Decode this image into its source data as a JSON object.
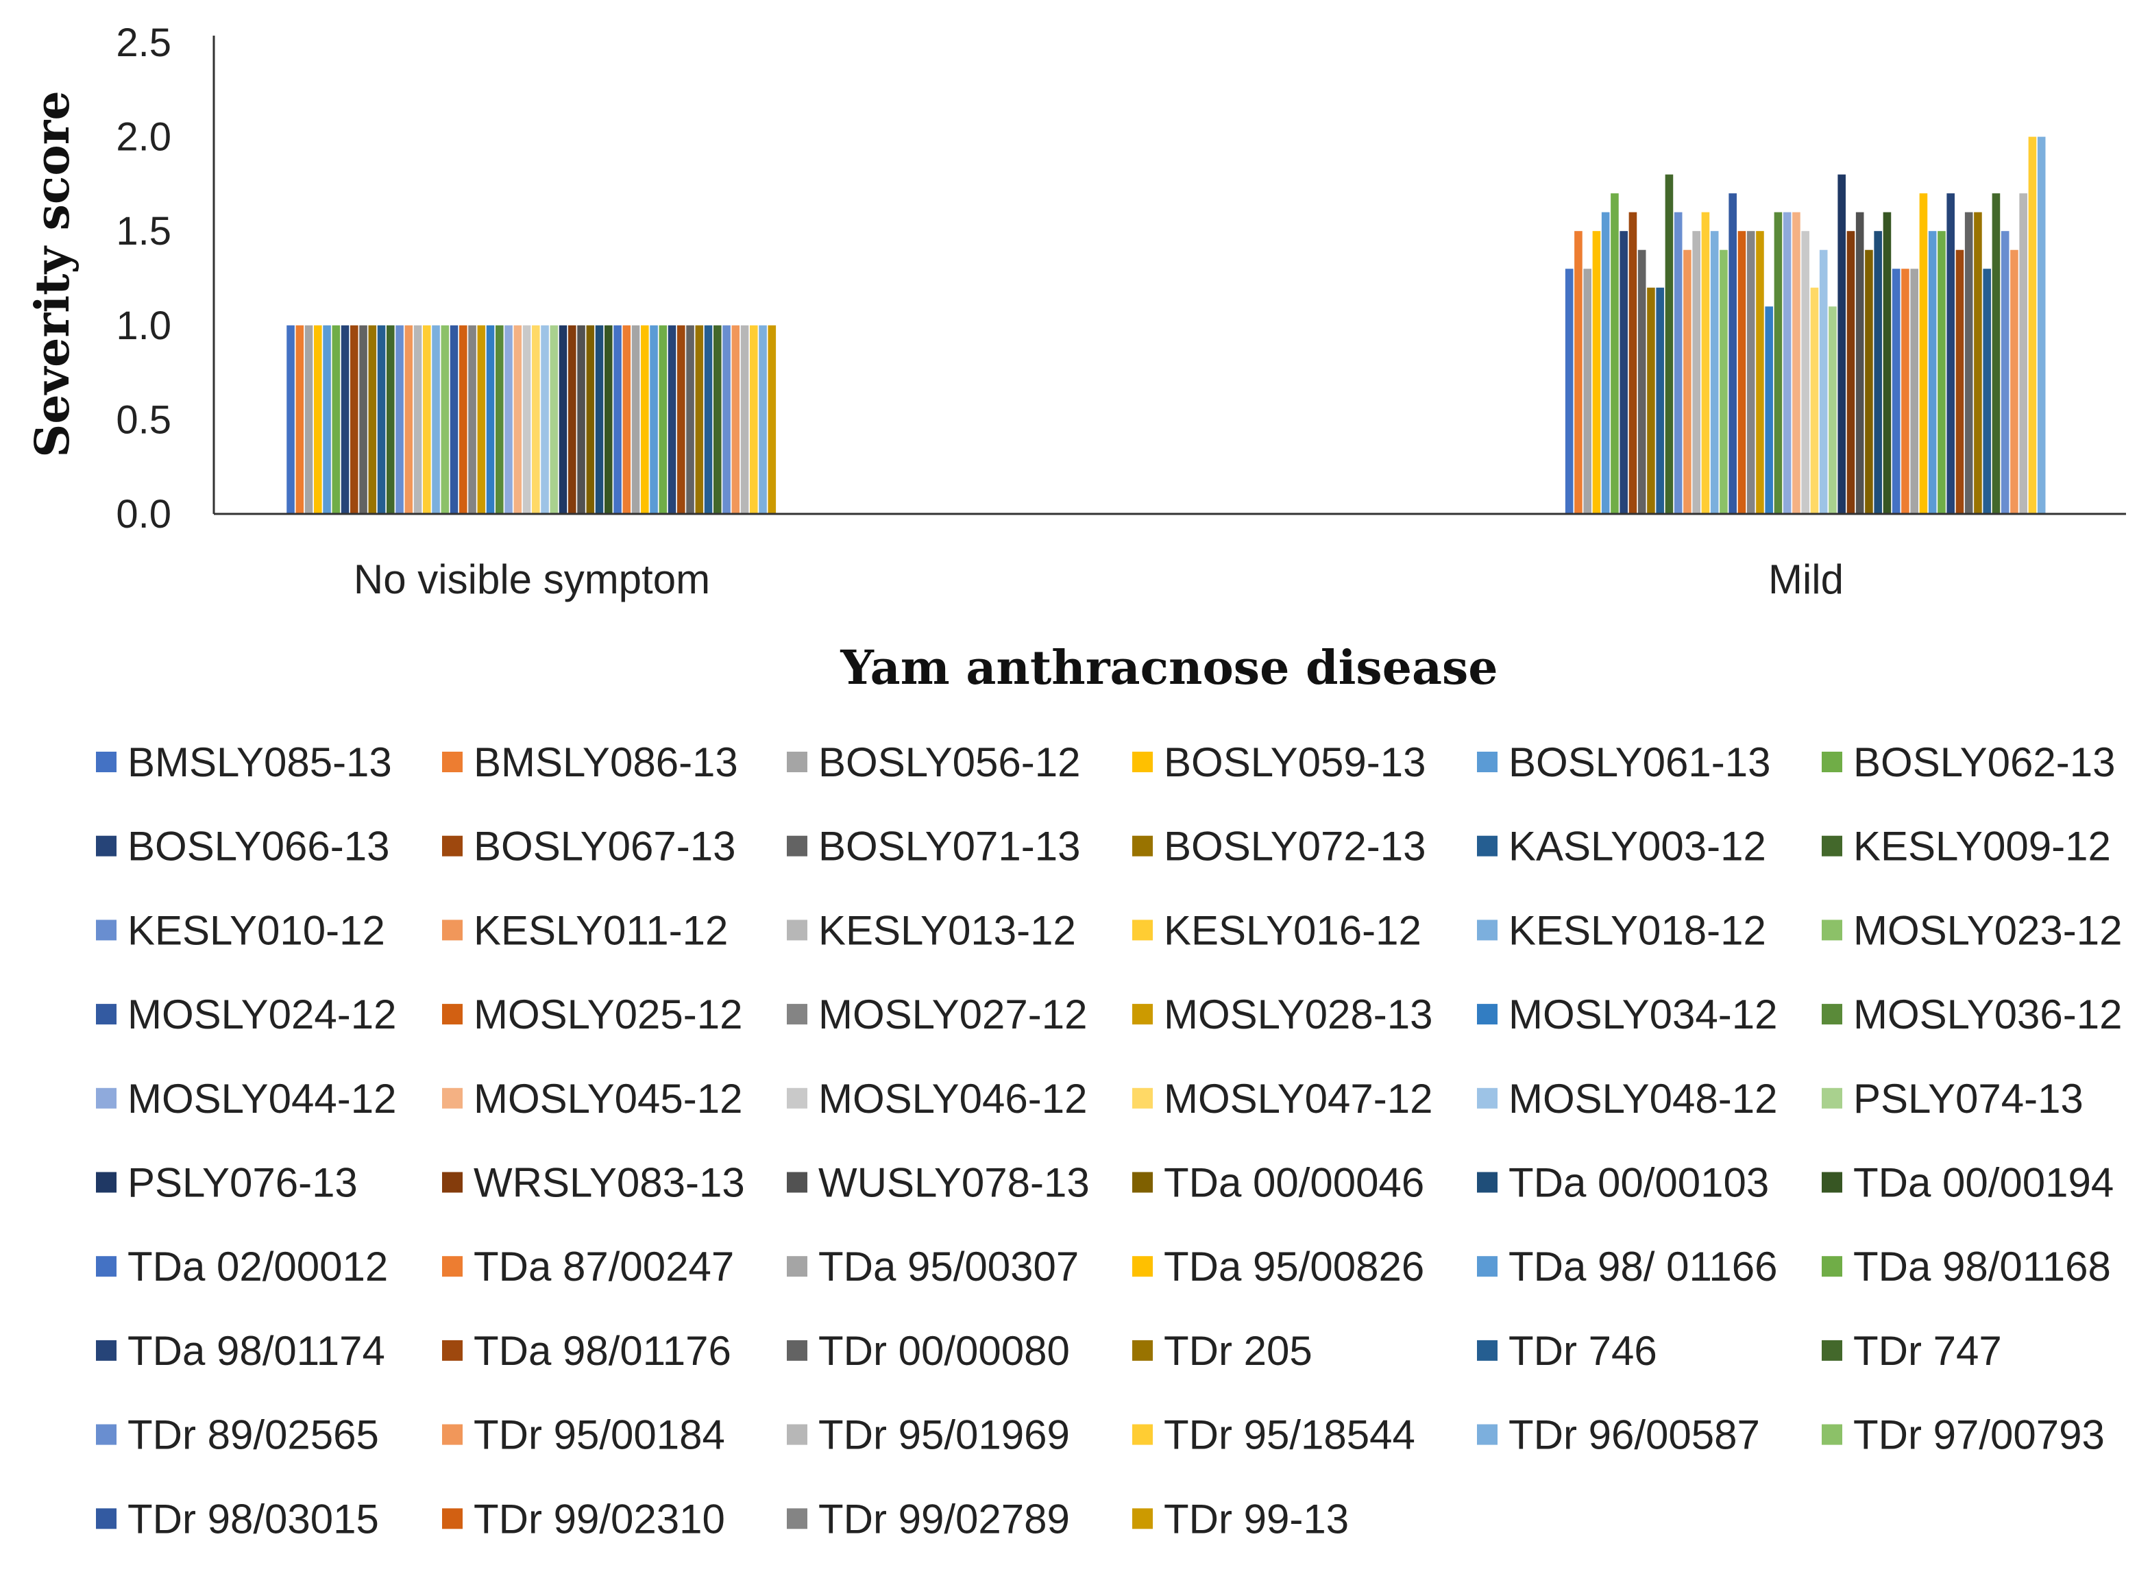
{
  "chart_data": {
    "type": "bar",
    "title": "",
    "xlabel": "Yam anthracnose disease",
    "ylabel": "Severity score",
    "ylim": [
      0,
      2.5
    ],
    "yticks": [
      "0.0",
      "0.5",
      "1.0",
      "1.5",
      "2.0",
      "2.5"
    ],
    "grid": false,
    "legend_position": "bottom",
    "categories": [
      "No visible symptom",
      "Mild"
    ],
    "palette": [
      "#4472C4",
      "#ED7D31",
      "#A5A5A5",
      "#FFC000",
      "#5B9BD5",
      "#70AD47",
      "#264478",
      "#9E480E",
      "#636363",
      "#997300",
      "#255E91",
      "#43682B",
      "#698ED0",
      "#F1975A",
      "#B7B7B7",
      "#FFCD33",
      "#7CAFDD",
      "#8CC168",
      "#335AA1",
      "#D26012",
      "#848484",
      "#CC9A00",
      "#327DC2",
      "#5A8A39",
      "#8FAADC",
      "#F4B183",
      "#C9C9C9",
      "#FFD966",
      "#9DC3E6",
      "#A9D18E",
      "#1F3864",
      "#843C0C",
      "#525252",
      "#7F6000",
      "#1F4E79",
      "#375623"
    ],
    "series": [
      {
        "name": "BMSLY085-13",
        "values": [
          1,
          1.3
        ]
      },
      {
        "name": "BMSLY086-13",
        "values": [
          1,
          1.5
        ]
      },
      {
        "name": "BOSLY056-12",
        "values": [
          1,
          1.3
        ]
      },
      {
        "name": "BOSLY059-13",
        "values": [
          1,
          1.5
        ]
      },
      {
        "name": "BOSLY061-13",
        "values": [
          1,
          1.6
        ]
      },
      {
        "name": "BOSLY062-13",
        "values": [
          1,
          1.7
        ]
      },
      {
        "name": "BOSLY066-13",
        "values": [
          1,
          1.5
        ]
      },
      {
        "name": "BOSLY067-13",
        "values": [
          1,
          1.6
        ]
      },
      {
        "name": "BOSLY071-13",
        "values": [
          1,
          1.4
        ]
      },
      {
        "name": "BOSLY072-13",
        "values": [
          1,
          1.2
        ]
      },
      {
        "name": "KASLY003-12",
        "values": [
          1,
          1.2
        ]
      },
      {
        "name": "KESLY009-12",
        "values": [
          1,
          1.8
        ]
      },
      {
        "name": "KESLY010-12",
        "values": [
          1,
          1.6
        ]
      },
      {
        "name": "KESLY011-12",
        "values": [
          1,
          1.4
        ]
      },
      {
        "name": "KESLY013-12",
        "values": [
          1,
          1.5
        ]
      },
      {
        "name": "KESLY016-12",
        "values": [
          1,
          1.6
        ]
      },
      {
        "name": "KESLY018-12",
        "values": [
          1,
          1.5
        ]
      },
      {
        "name": "MOSLY023-12",
        "values": [
          1,
          1.4
        ]
      },
      {
        "name": "MOSLY024-12",
        "values": [
          1,
          1.7
        ]
      },
      {
        "name": "MOSLY025-12",
        "values": [
          1,
          1.5
        ]
      },
      {
        "name": "MOSLY027-12",
        "values": [
          1,
          1.5
        ]
      },
      {
        "name": "MOSLY028-13",
        "values": [
          1,
          1.5
        ]
      },
      {
        "name": "MOSLY034-12",
        "values": [
          1,
          1.1
        ]
      },
      {
        "name": "MOSLY036-12",
        "values": [
          1,
          1.6
        ]
      },
      {
        "name": "MOSLY044-12",
        "values": [
          1,
          1.6
        ]
      },
      {
        "name": "MOSLY045-12",
        "values": [
          1,
          1.6
        ]
      },
      {
        "name": "MOSLY046-12",
        "values": [
          1,
          1.5
        ]
      },
      {
        "name": "MOSLY047-12",
        "values": [
          1,
          1.2
        ]
      },
      {
        "name": "MOSLY048-12",
        "values": [
          1,
          1.4
        ]
      },
      {
        "name": "PSLY074-13",
        "values": [
          1,
          1.1
        ]
      },
      {
        "name": "PSLY076-13",
        "values": [
          1,
          1.8
        ]
      },
      {
        "name": "WRSLY083-13",
        "values": [
          1,
          1.5
        ]
      },
      {
        "name": "WUSLY078-13",
        "values": [
          1,
          1.6
        ]
      },
      {
        "name": "TDa 00/00046",
        "values": [
          1,
          1.4
        ]
      },
      {
        "name": "TDa 00/00103",
        "values": [
          1,
          1.5
        ]
      },
      {
        "name": "TDa 00/00194",
        "values": [
          1,
          1.6
        ]
      },
      {
        "name": "TDa 02/00012",
        "values": [
          1,
          1.3
        ]
      },
      {
        "name": "TDa 87/00247",
        "values": [
          1,
          1.3
        ]
      },
      {
        "name": "TDa 95/00307",
        "values": [
          1,
          1.3
        ]
      },
      {
        "name": "TDa 95/00826",
        "values": [
          1,
          1.7
        ]
      },
      {
        "name": "TDa 98/ 01166",
        "values": [
          1,
          1.5
        ]
      },
      {
        "name": "TDa 98/01168",
        "values": [
          1,
          1.5
        ]
      },
      {
        "name": "TDa 98/01174",
        "values": [
          1,
          1.7
        ]
      },
      {
        "name": "TDa 98/01176",
        "values": [
          1,
          1.4
        ]
      },
      {
        "name": "TDr 00/00080",
        "values": [
          1,
          1.6
        ]
      },
      {
        "name": "TDr 205",
        "values": [
          1,
          1.6
        ]
      },
      {
        "name": "TDr 746",
        "values": [
          1,
          1.3
        ]
      },
      {
        "name": "TDr 747",
        "values": [
          1,
          1.7
        ]
      },
      {
        "name": "TDr 89/02565",
        "values": [
          1,
          1.5
        ]
      },
      {
        "name": "TDr 95/00184",
        "values": [
          1,
          1.4
        ]
      },
      {
        "name": "TDr 95/01969",
        "values": [
          1,
          1.7
        ]
      },
      {
        "name": "TDr 95/18544",
        "values": [
          1,
          2.0
        ]
      },
      {
        "name": "TDr 96/00587",
        "values": [
          1,
          2.0
        ]
      },
      {
        "name": "TDr 97/00793",
        "values": [
          null,
          null
        ]
      },
      {
        "name": "TDr 98/03015",
        "values": [
          null,
          null
        ]
      },
      {
        "name": "TDr 99/02310",
        "values": [
          null,
          null
        ]
      },
      {
        "name": "TDr 99/02789",
        "values": [
          null,
          null
        ]
      },
      {
        "name": "TDr 99-13",
        "values": [
          1,
          null
        ]
      }
    ]
  }
}
